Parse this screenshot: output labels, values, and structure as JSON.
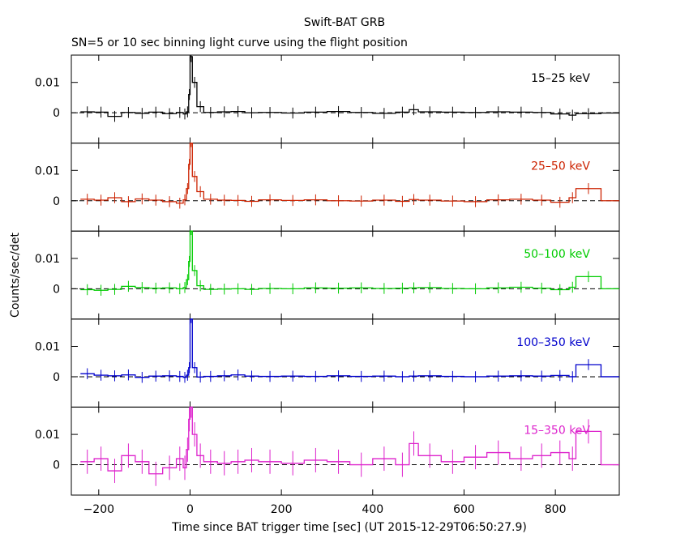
{
  "title": "Swift-BAT GRB",
  "subtitle": "SN=5 or 10 sec binning light curve using the flight position",
  "chart_data": {
    "type": "line",
    "title": "Swift-BAT GRB",
    "subtitle": "SN=5 or 10 sec binning light curve using the flight position",
    "xlabel": "Time since BAT trigger time [sec] (UT 2015-12-29T06:50:27.9)",
    "ylabel": "Counts/sec/det",
    "xlim": [
      -260,
      940
    ],
    "x_ticks": [
      -200,
      0,
      200,
      400,
      600,
      800
    ],
    "x_tick_labels": [
      "−200",
      "0",
      "200",
      "400",
      "600",
      "800"
    ],
    "y_ticks": [
      0,
      0.01
    ],
    "y_tick_labels": [
      "0",
      "0.01"
    ],
    "grid": false,
    "legend": "panel labels top-right",
    "zero_line": "dashed",
    "panels": [
      {
        "name": "15–25 keV",
        "color": "#000000",
        "ylim": [
          -0.01,
          0.019
        ],
        "x": [
          -240,
          -210,
          -180,
          -150,
          -120,
          -90,
          -60,
          -30,
          -15,
          -8,
          -3,
          0,
          5,
          15,
          30,
          60,
          90,
          120,
          150,
          200,
          250,
          300,
          350,
          400,
          450,
          480,
          500,
          550,
          600,
          650,
          700,
          750,
          790,
          830,
          845,
          900,
          940
        ],
        "y": [
          0.0003,
          0.0002,
          -0.0012,
          0.0001,
          -0.0002,
          0.0002,
          -0.0003,
          0.0001,
          -0.0004,
          0.0003,
          0.006,
          0.0185,
          0.01,
          0.002,
          0.0001,
          0.0003,
          0.0004,
          0.0,
          0.0001,
          -0.0001,
          0.0002,
          0.0004,
          0.0001,
          -0.0002,
          0.0002,
          0.001,
          0.0003,
          0.0002,
          0.0001,
          0.0003,
          0.0002,
          0.0001,
          -0.0004,
          -0.0008,
          -0.0003,
          -0.0001,
          -0.0001
        ]
      },
      {
        "name": "25–50 keV",
        "color": "#cc2200",
        "ylim": [
          -0.01,
          0.019
        ],
        "x": [
          -240,
          -210,
          -180,
          -150,
          -120,
          -90,
          -60,
          -30,
          -15,
          -8,
          -3,
          0,
          5,
          15,
          30,
          60,
          90,
          120,
          150,
          200,
          250,
          300,
          350,
          400,
          450,
          480,
          500,
          550,
          600,
          650,
          700,
          750,
          790,
          830,
          845,
          900,
          940
        ],
        "y": [
          0.0005,
          0.0002,
          0.001,
          -0.0003,
          0.0006,
          0.0002,
          -0.0003,
          -0.0008,
          0.0003,
          0.004,
          0.012,
          0.0195,
          0.008,
          0.003,
          0.0005,
          0.0002,
          0.0001,
          -0.0002,
          0.0003,
          0.0001,
          0.0003,
          0.0,
          -0.0001,
          0.0002,
          -0.0002,
          0.0004,
          0.0002,
          -0.0001,
          -0.0003,
          0.0003,
          0.0005,
          0.0002,
          -0.0005,
          0.001,
          0.004,
          0.0,
          0.0
        ]
      },
      {
        "name": "50–100 keV",
        "color": "#00cc00",
        "ylim": [
          -0.01,
          0.019
        ],
        "x": [
          -240,
          -210,
          -180,
          -150,
          -120,
          -90,
          -60,
          -30,
          -15,
          -8,
          -3,
          0,
          5,
          15,
          30,
          60,
          90,
          120,
          150,
          200,
          250,
          300,
          350,
          400,
          450,
          480,
          500,
          550,
          600,
          650,
          700,
          750,
          790,
          830,
          845,
          900,
          940
        ],
        "y": [
          -0.0003,
          -0.0005,
          -0.0002,
          0.0008,
          0.0004,
          0.0002,
          0.0003,
          0.0,
          0.0004,
          0.003,
          0.009,
          0.0195,
          0.006,
          0.001,
          -0.0002,
          -0.0001,
          0.0,
          -0.0002,
          0.0001,
          0.0,
          0.0003,
          0.0002,
          0.0003,
          0.0001,
          0.0002,
          0.0003,
          0.0004,
          0.0001,
          0.0,
          0.0003,
          0.0005,
          0.0002,
          -0.0003,
          0.0005,
          0.004,
          0.0,
          0.0
        ]
      },
      {
        "name": "100–350 keV",
        "color": "#0000cc",
        "ylim": [
          -0.01,
          0.019
        ],
        "x": [
          -240,
          -210,
          -180,
          -150,
          -120,
          -90,
          -60,
          -30,
          -15,
          -8,
          -3,
          0,
          5,
          15,
          30,
          60,
          90,
          120,
          150,
          200,
          250,
          300,
          350,
          400,
          450,
          480,
          500,
          550,
          600,
          650,
          700,
          750,
          790,
          830,
          845,
          900,
          940
        ],
        "y": [
          0.001,
          0.0005,
          0.0003,
          0.0006,
          -0.0002,
          0.0002,
          0.0003,
          0.0001,
          -0.0002,
          0.0005,
          0.003,
          0.0195,
          0.003,
          -0.0001,
          0.0001,
          0.0003,
          0.0006,
          0.0002,
          0.0001,
          0.0002,
          0.0001,
          0.0003,
          0.0001,
          0.0002,
          0.0,
          0.0002,
          0.0003,
          0.0001,
          0.0,
          0.0002,
          0.0003,
          0.0002,
          0.0004,
          0.0,
          0.004,
          0.0,
          0.0
        ]
      },
      {
        "name": "15–350 keV",
        "color": "#dd22cc",
        "ylim": [
          -0.01,
          0.019
        ],
        "x": [
          -240,
          -210,
          -180,
          -150,
          -120,
          -90,
          -60,
          -30,
          -15,
          -8,
          -3,
          0,
          5,
          15,
          30,
          60,
          90,
          120,
          150,
          200,
          250,
          300,
          350,
          400,
          450,
          480,
          500,
          550,
          600,
          650,
          700,
          750,
          790,
          830,
          845,
          900,
          940
        ],
        "y": [
          0.001,
          0.002,
          -0.002,
          0.003,
          0.001,
          -0.003,
          -0.001,
          0.002,
          -0.001,
          0.005,
          0.015,
          0.0195,
          0.01,
          0.003,
          0.001,
          0.0005,
          0.001,
          0.0015,
          0.001,
          0.0005,
          0.0015,
          0.001,
          0.0,
          0.002,
          0.0,
          0.007,
          0.003,
          0.001,
          0.0025,
          0.004,
          0.002,
          0.003,
          0.004,
          0.002,
          0.011,
          0.0,
          0.0
        ]
      }
    ]
  }
}
